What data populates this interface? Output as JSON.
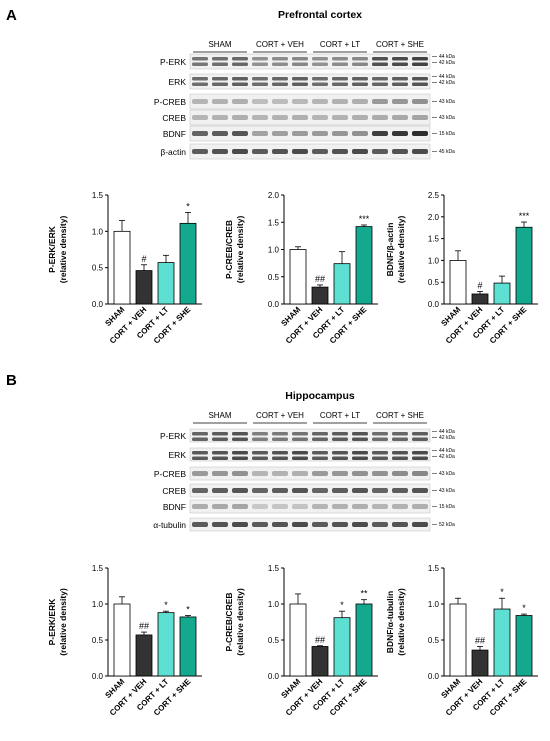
{
  "panels": [
    {
      "letter": "A",
      "title": "Prefrontal cortex",
      "groups": [
        "SHAM",
        "CORT + VEH",
        "CORT + LT",
        "CORT + SHE"
      ],
      "blots": [
        {
          "label": "P-ERK",
          "kda": [
            "44 kDa",
            "42 kDa"
          ],
          "intensity": [
            0.65,
            0.5,
            0.5,
            0.85
          ],
          "doublet": true
        },
        {
          "label": "ERK",
          "kda": [
            "44 kDa",
            "42 kDa"
          ],
          "intensity": [
            0.7,
            0.7,
            0.7,
            0.75
          ],
          "doublet": true
        },
        {
          "label": "P-CREB",
          "kda": [
            "43 kDa"
          ],
          "intensity": [
            0.3,
            0.25,
            0.3,
            0.45
          ],
          "doublet": false
        },
        {
          "label": "CREB",
          "kda": [
            "43 kDa"
          ],
          "intensity": [
            0.3,
            0.3,
            0.3,
            0.35
          ],
          "doublet": false
        },
        {
          "label": "BDNF",
          "kda": [
            "15 kDa"
          ],
          "intensity": [
            0.75,
            0.4,
            0.45,
            0.95
          ],
          "doublet": false
        },
        {
          "label": "β-actin",
          "kda": [
            "45 kDa"
          ],
          "intensity": [
            0.8,
            0.8,
            0.8,
            0.8
          ],
          "doublet": false
        }
      ]
    },
    {
      "letter": "B",
      "title": "Hippocampus",
      "groups": [
        "SHAM",
        "CORT + VEH",
        "CORT + LT",
        "CORT + SHE"
      ],
      "blots": [
        {
          "label": "P-ERK",
          "kda": [
            "44 kDa",
            "42 kDa"
          ],
          "intensity": [
            0.75,
            0.6,
            0.75,
            0.7
          ],
          "doublet": true
        },
        {
          "label": "ERK",
          "kda": [
            "44 kDa",
            "42 kDa"
          ],
          "intensity": [
            0.8,
            0.8,
            0.8,
            0.8
          ],
          "doublet": true
        },
        {
          "label": "P-CREB",
          "kda": [
            "43 kDa"
          ],
          "intensity": [
            0.45,
            0.3,
            0.45,
            0.5
          ],
          "doublet": false
        },
        {
          "label": "CREB",
          "kda": [
            "43 kDa"
          ],
          "intensity": [
            0.75,
            0.75,
            0.75,
            0.75
          ],
          "doublet": false
        },
        {
          "label": "BDNF",
          "kda": [
            "15 kDa"
          ],
          "intensity": [
            0.35,
            0.2,
            0.3,
            0.3
          ],
          "doublet": false
        },
        {
          "label": "α-tubulin",
          "kda": [
            "52 kDa"
          ],
          "intensity": [
            0.8,
            0.8,
            0.8,
            0.8
          ],
          "doublet": false
        }
      ]
    }
  ],
  "colors": {
    "SHAM": "#ffffff",
    "CORT + VEH": "#333333",
    "CORT + LT": "#5de0d2",
    "CORT + SHE": "#13a98f"
  },
  "chart_data": [
    {
      "type": "bar",
      "panel": "A",
      "categories": [
        "SHAM",
        "CORT + VEH",
        "CORT + LT",
        "CORT + SHE"
      ],
      "values": [
        1.0,
        0.46,
        0.57,
        1.11
      ],
      "errors": [
        0.15,
        0.08,
        0.1,
        0.15
      ],
      "significance": [
        "",
        "#",
        "",
        "*"
      ],
      "ylabel": "P-ERK/ERK\n(relative density)",
      "ylim": [
        0,
        1.5
      ],
      "yticks": [
        "0.0",
        "0.5",
        "1.0",
        "1.5"
      ]
    },
    {
      "type": "bar",
      "panel": "A",
      "categories": [
        "SHAM",
        "CORT + VEH",
        "CORT + LT",
        "CORT + SHE"
      ],
      "values": [
        1.0,
        0.31,
        0.74,
        1.42
      ],
      "errors": [
        0.05,
        0.04,
        0.22,
        0.03
      ],
      "significance": [
        "",
        "##",
        "",
        "***"
      ],
      "ylabel": "P-CREB/CREB\n(relative density)",
      "ylim": [
        0,
        2.0
      ],
      "yticks": [
        "0.0",
        "0.5",
        "1.0",
        "1.5",
        "2.0"
      ]
    },
    {
      "type": "bar",
      "panel": "A",
      "categories": [
        "SHAM",
        "CORT + VEH",
        "CORT + LT",
        "CORT + SHE"
      ],
      "values": [
        1.0,
        0.23,
        0.48,
        1.76
      ],
      "errors": [
        0.22,
        0.06,
        0.16,
        0.12
      ],
      "significance": [
        "",
        "#",
        "",
        "***"
      ],
      "ylabel": "BDNF/β-actin\n(relative density)",
      "ylim": [
        0,
        2.5
      ],
      "yticks": [
        "0.0",
        "0.5",
        "1.0",
        "1.5",
        "2.0",
        "2.5"
      ]
    },
    {
      "type": "bar",
      "panel": "B",
      "categories": [
        "SHAM",
        "CORT + VEH",
        "CORT + LT",
        "CORT + SHE"
      ],
      "values": [
        1.0,
        0.57,
        0.88,
        0.82
      ],
      "errors": [
        0.1,
        0.04,
        0.02,
        0.02
      ],
      "significance": [
        "",
        "##",
        "*",
        "*"
      ],
      "ylabel": "P-ERK/ERK\n(relative density)",
      "ylim": [
        0,
        1.5
      ],
      "yticks": [
        "0.0",
        "0.5",
        "1.0",
        "1.5"
      ]
    },
    {
      "type": "bar",
      "panel": "B",
      "categories": [
        "SHAM",
        "CORT + VEH",
        "CORT + LT",
        "CORT + SHE"
      ],
      "values": [
        1.0,
        0.41,
        0.81,
        1.0
      ],
      "errors": [
        0.14,
        0.01,
        0.09,
        0.06
      ],
      "significance": [
        "",
        "##",
        "*",
        "**"
      ],
      "ylabel": "P-CREB/CREB\n(relative density)",
      "ylim": [
        0,
        1.5
      ],
      "yticks": [
        "0.0",
        "0.5",
        "1.0",
        "1.5"
      ]
    },
    {
      "type": "bar",
      "panel": "B",
      "categories": [
        "SHAM",
        "CORT + VEH",
        "CORT + LT",
        "CORT + SHE"
      ],
      "values": [
        1.0,
        0.36,
        0.93,
        0.84
      ],
      "errors": [
        0.08,
        0.05,
        0.15,
        0.02
      ],
      "significance": [
        "",
        "##",
        "*",
        "*"
      ],
      "ylabel": "BDNF/α-tubulin\n(relative density)",
      "ylim": [
        0,
        1.5
      ],
      "yticks": [
        "0.0",
        "0.5",
        "1.0",
        "1.5"
      ]
    }
  ]
}
